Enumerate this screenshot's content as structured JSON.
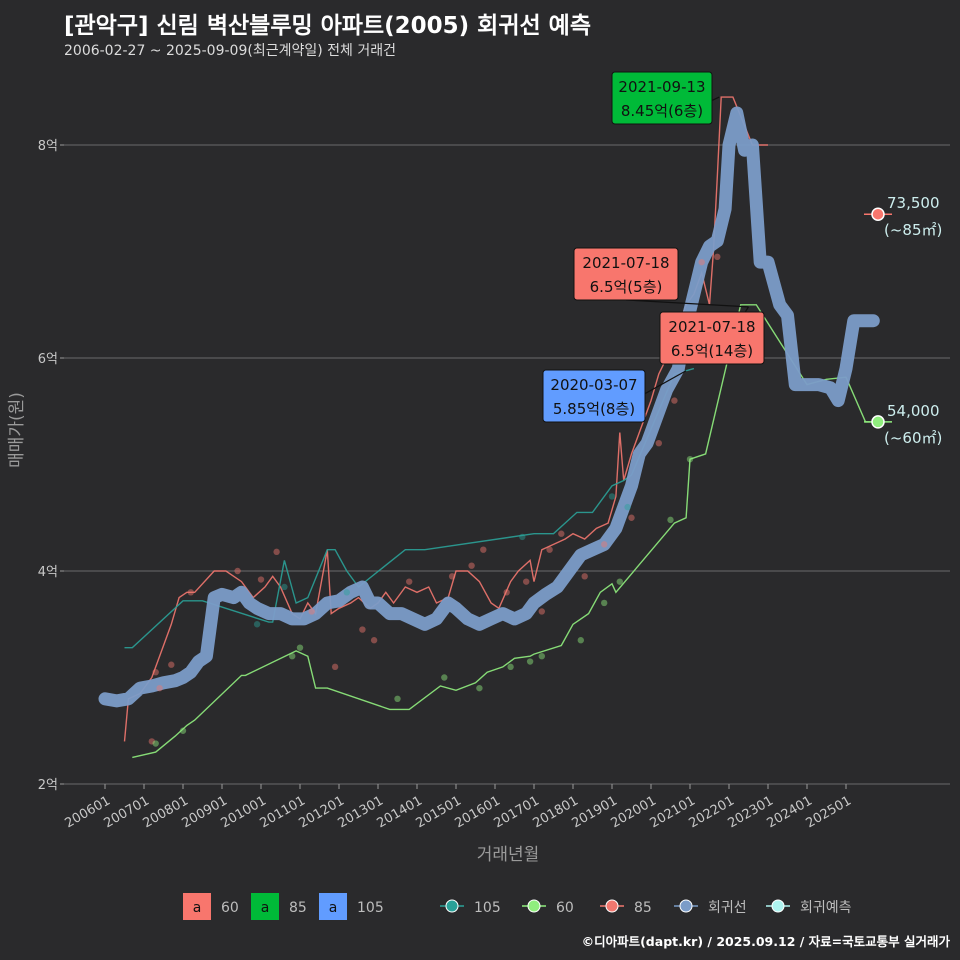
{
  "title": "[관악구] 신림 벽산블루밍 아파트(2005) 회귀선 예측",
  "subtitle": "2006-02-27 ~ 2025-09-09(최근계약일) 전체 거래건",
  "credit": "©디아파트(dapt.kr) / 2025.09.12 / 자료=국토교통부 실거래가",
  "chart_data": {
    "type": "line",
    "xlabel": "거래년월",
    "ylabel": "매매가(원)",
    "x_ticks": [
      "200601",
      "200701",
      "200801",
      "200901",
      "201001",
      "201101",
      "201201",
      "201301",
      "201401",
      "201501",
      "201601",
      "201701",
      "201801",
      "201901",
      "202001",
      "202101",
      "202201",
      "202301",
      "202401",
      "202501"
    ],
    "y_ticks": [
      "2억",
      "4억",
      "6억",
      "8억"
    ],
    "ylim": [
      1.95,
      8.6
    ],
    "grid": true,
    "colors": {
      "c60": "#f2776f",
      "c85": "#90ee7e",
      "c105": "#2aa198",
      "reg": "#7b9cc8",
      "pred": "#aef4f0",
      "ann60": "#f8766d",
      "ann85": "#00ba38",
      "ann105": "#619cff"
    },
    "legend_fill": [
      {
        "key": "a",
        "label": "60",
        "color": "#f8766d"
      },
      {
        "key": "a",
        "label": "85",
        "color": "#00ba38"
      },
      {
        "key": "a",
        "label": "105",
        "color": "#619cff"
      }
    ],
    "legend_lines": [
      {
        "label": "105",
        "color": "#2aa198"
      },
      {
        "label": "60",
        "color": "#90ee7e"
      },
      {
        "label": "85",
        "color": "#f2776f"
      },
      {
        "label": "회귀선",
        "color": "#7b9cc8"
      },
      {
        "label": "회귀예측",
        "color": "#aef4f0"
      }
    ],
    "series": [
      {
        "name": "85",
        "color": "#f2776f",
        "points": [
          [
            2006.5,
            2.4
          ],
          [
            2006.6,
            2.8
          ],
          [
            2006.9,
            2.85
          ],
          [
            2007.2,
            3.0
          ],
          [
            2007.4,
            3.2
          ],
          [
            2007.7,
            3.5
          ],
          [
            2007.9,
            3.75
          ],
          [
            2008.1,
            3.8
          ],
          [
            2008.3,
            3.8
          ],
          [
            2008.8,
            4.0
          ],
          [
            2009.1,
            4.0
          ],
          [
            2009.3,
            3.95
          ],
          [
            2009.5,
            3.9
          ],
          [
            2009.8,
            3.75
          ],
          [
            2010.1,
            3.85
          ],
          [
            2010.3,
            3.95
          ],
          [
            2010.5,
            3.85
          ],
          [
            2010.8,
            3.6
          ],
          [
            2011.0,
            3.55
          ],
          [
            2011.2,
            3.7
          ],
          [
            2011.4,
            3.6
          ],
          [
            2011.5,
            3.8
          ],
          [
            2011.7,
            4.2
          ],
          [
            2011.8,
            3.6
          ],
          [
            2012.0,
            3.65
          ],
          [
            2012.3,
            3.7
          ],
          [
            2012.5,
            3.75
          ],
          [
            2012.8,
            3.65
          ],
          [
            2013.0,
            3.7
          ],
          [
            2013.2,
            3.8
          ],
          [
            2013.4,
            3.7
          ],
          [
            2013.7,
            3.85
          ],
          [
            2014.0,
            3.8
          ],
          [
            2014.3,
            3.85
          ],
          [
            2014.5,
            3.7
          ],
          [
            2014.8,
            3.75
          ],
          [
            2015.0,
            4.0
          ],
          [
            2015.3,
            4.0
          ],
          [
            2015.6,
            3.9
          ],
          [
            2015.9,
            3.7
          ],
          [
            2016.1,
            3.65
          ],
          [
            2016.4,
            3.9
          ],
          [
            2016.6,
            4.0
          ],
          [
            2016.9,
            4.1
          ],
          [
            2017.0,
            3.9
          ],
          [
            2017.2,
            4.2
          ],
          [
            2017.5,
            4.25
          ],
          [
            2017.8,
            4.3
          ],
          [
            2018.0,
            4.35
          ],
          [
            2018.3,
            4.3
          ],
          [
            2018.6,
            4.4
          ],
          [
            2018.9,
            4.45
          ],
          [
            2019.1,
            4.7
          ],
          [
            2019.2,
            5.3
          ],
          [
            2019.3,
            4.85
          ],
          [
            2019.5,
            5.1
          ],
          [
            2019.8,
            5.4
          ],
          [
            2020.0,
            5.6
          ],
          [
            2020.2,
            5.85
          ],
          [
            2020.4,
            6.0
          ],
          [
            2020.7,
            6.3
          ],
          [
            2020.9,
            6.5
          ],
          [
            2021.1,
            6.6
          ],
          [
            2021.3,
            6.8
          ],
          [
            2021.5,
            6.5
          ],
          [
            2021.6,
            7.0
          ],
          [
            2021.7,
            7.7
          ],
          [
            2021.8,
            8.45
          ],
          [
            2022.1,
            8.45
          ],
          [
            2022.6,
            8.0
          ],
          [
            2023.0,
            8.0
          ]
        ]
      },
      {
        "name": "60",
        "color": "#90ee7e",
        "points": [
          [
            2006.7,
            2.25
          ],
          [
            2007.3,
            2.3
          ],
          [
            2007.8,
            2.45
          ],
          [
            2008.1,
            2.55
          ],
          [
            2008.3,
            2.6
          ],
          [
            2009.5,
            3.02
          ],
          [
            2009.6,
            3.02
          ],
          [
            2010.9,
            3.25
          ],
          [
            2011.2,
            3.2
          ],
          [
            2011.4,
            2.9
          ],
          [
            2011.7,
            2.9
          ],
          [
            2013.3,
            2.7
          ],
          [
            2013.8,
            2.7
          ],
          [
            2014.6,
            2.92
          ],
          [
            2015.0,
            2.88
          ],
          [
            2015.5,
            2.95
          ],
          [
            2015.8,
            3.05
          ],
          [
            2016.2,
            3.1
          ],
          [
            2016.5,
            3.18
          ],
          [
            2016.9,
            3.2
          ],
          [
            2017.0,
            3.22
          ],
          [
            2017.7,
            3.3
          ],
          [
            2018.0,
            3.5
          ],
          [
            2018.4,
            3.6
          ],
          [
            2018.7,
            3.8
          ],
          [
            2019.0,
            3.88
          ],
          [
            2019.1,
            3.8
          ],
          [
            2020.6,
            4.45
          ],
          [
            2020.9,
            4.5
          ],
          [
            2021.0,
            5.05
          ],
          [
            2021.4,
            5.1
          ],
          [
            2022.3,
            6.5
          ],
          [
            2022.7,
            6.5
          ],
          [
            2024.0,
            5.75
          ],
          [
            2024.5,
            5.8
          ],
          [
            2025.0,
            5.82
          ],
          [
            2025.5,
            5.4
          ],
          [
            2025.7,
            5.4
          ]
        ]
      },
      {
        "name": "105",
        "color": "#2aa198",
        "points": [
          [
            2006.5,
            3.28
          ],
          [
            2006.7,
            3.28
          ],
          [
            2008.0,
            3.72
          ],
          [
            2008.5,
            3.72
          ],
          [
            2010.2,
            3.52
          ],
          [
            2010.3,
            3.52
          ],
          [
            2010.6,
            4.1
          ],
          [
            2010.9,
            3.7
          ],
          [
            2011.2,
            3.75
          ],
          [
            2011.7,
            4.2
          ],
          [
            2011.9,
            4.2
          ],
          [
            2012.2,
            4.0
          ],
          [
            2012.5,
            3.85
          ],
          [
            2013.7,
            4.2
          ],
          [
            2014.2,
            4.2
          ],
          [
            2017.0,
            4.35
          ],
          [
            2017.5,
            4.35
          ],
          [
            2018.1,
            4.55
          ],
          [
            2018.5,
            4.55
          ],
          [
            2019.0,
            4.8
          ],
          [
            2019.3,
            4.85
          ],
          [
            2019.5,
            4.9
          ],
          [
            2020.6,
            5.85
          ],
          [
            2021.1,
            5.9
          ]
        ]
      },
      {
        "name": "회귀선",
        "color": "#7b9cc8",
        "points": [
          [
            2006.0,
            2.8
          ],
          [
            2006.3,
            2.78
          ],
          [
            2006.6,
            2.8
          ],
          [
            2006.9,
            2.9
          ],
          [
            2007.2,
            2.92
          ],
          [
            2007.5,
            2.95
          ],
          [
            2007.8,
            2.97
          ],
          [
            2008.0,
            3.0
          ],
          [
            2008.2,
            3.05
          ],
          [
            2008.4,
            3.15
          ],
          [
            2008.6,
            3.2
          ],
          [
            2008.8,
            3.75
          ],
          [
            2009.0,
            3.78
          ],
          [
            2009.3,
            3.75
          ],
          [
            2009.5,
            3.8
          ],
          [
            2009.7,
            3.7
          ],
          [
            2009.9,
            3.65
          ],
          [
            2010.2,
            3.6
          ],
          [
            2010.5,
            3.6
          ],
          [
            2010.8,
            3.55
          ],
          [
            2011.1,
            3.55
          ],
          [
            2011.4,
            3.6
          ],
          [
            2011.7,
            3.7
          ],
          [
            2012.0,
            3.72
          ],
          [
            2012.3,
            3.8
          ],
          [
            2012.6,
            3.85
          ],
          [
            2012.8,
            3.7
          ],
          [
            2013.0,
            3.7
          ],
          [
            2013.3,
            3.6
          ],
          [
            2013.6,
            3.6
          ],
          [
            2013.9,
            3.55
          ],
          [
            2014.2,
            3.5
          ],
          [
            2014.5,
            3.55
          ],
          [
            2014.8,
            3.7
          ],
          [
            2015.0,
            3.65
          ],
          [
            2015.3,
            3.55
          ],
          [
            2015.6,
            3.5
          ],
          [
            2015.9,
            3.55
          ],
          [
            2016.2,
            3.6
          ],
          [
            2016.5,
            3.55
          ],
          [
            2016.8,
            3.6
          ],
          [
            2017.0,
            3.7
          ],
          [
            2017.3,
            3.78
          ],
          [
            2017.6,
            3.85
          ],
          [
            2017.9,
            4.0
          ],
          [
            2018.2,
            4.15
          ],
          [
            2018.5,
            4.2
          ],
          [
            2018.8,
            4.25
          ],
          [
            2019.1,
            4.4
          ],
          [
            2019.3,
            4.6
          ],
          [
            2019.5,
            4.8
          ],
          [
            2019.7,
            5.1
          ],
          [
            2019.9,
            5.2
          ],
          [
            2020.1,
            5.4
          ],
          [
            2020.4,
            5.7
          ],
          [
            2020.7,
            5.9
          ],
          [
            2020.9,
            6.3
          ],
          [
            2021.1,
            6.6
          ],
          [
            2021.3,
            6.9
          ],
          [
            2021.5,
            7.05
          ],
          [
            2021.7,
            7.1
          ],
          [
            2021.9,
            7.4
          ],
          [
            2022.0,
            8.0
          ],
          [
            2022.2,
            8.3
          ],
          [
            2022.4,
            7.95
          ],
          [
            2022.6,
            8.0
          ],
          [
            2022.8,
            6.9
          ],
          [
            2023.0,
            6.9
          ],
          [
            2023.3,
            6.5
          ],
          [
            2023.5,
            6.4
          ],
          [
            2023.7,
            5.75
          ],
          [
            2024.0,
            5.75
          ],
          [
            2024.3,
            5.75
          ],
          [
            2024.6,
            5.72
          ],
          [
            2024.8,
            5.6
          ],
          [
            2025.0,
            5.9
          ],
          [
            2025.2,
            6.35
          ],
          [
            2025.5,
            6.35
          ],
          [
            2025.7,
            6.35
          ]
        ]
      }
    ],
    "scatter_points": [
      [
        2007.3,
        3.05,
        "c60"
      ],
      [
        2007.7,
        3.12,
        "c60"
      ],
      [
        2007.4,
        2.9,
        "c60"
      ],
      [
        2007.2,
        2.4,
        "c60"
      ],
      [
        2008.2,
        3.8,
        "c60"
      ],
      [
        2009.4,
        4.0,
        "c60"
      ],
      [
        2010.0,
        3.92,
        "c60"
      ],
      [
        2010.4,
        4.18,
        "c60"
      ],
      [
        2011.3,
        3.62,
        "c60"
      ],
      [
        2011.9,
        3.1,
        "c60"
      ],
      [
        2012.6,
        3.45,
        "c60"
      ],
      [
        2012.9,
        3.35,
        "c60"
      ],
      [
        2013.8,
        3.9,
        "c60"
      ],
      [
        2014.9,
        3.95,
        "c60"
      ],
      [
        2015.4,
        4.05,
        "c60"
      ],
      [
        2015.7,
        4.2,
        "c60"
      ],
      [
        2016.3,
        3.8,
        "c60"
      ],
      [
        2016.8,
        3.9,
        "c60"
      ],
      [
        2017.2,
        3.62,
        "c60"
      ],
      [
        2017.4,
        4.2,
        "c60"
      ],
      [
        2017.7,
        4.35,
        "c60"
      ],
      [
        2018.3,
        3.95,
        "c60"
      ],
      [
        2018.8,
        4.25,
        "c60"
      ],
      [
        2019.5,
        4.5,
        "c60"
      ],
      [
        2020.2,
        5.2,
        "c60"
      ],
      [
        2020.6,
        5.6,
        "c60"
      ],
      [
        2021.3,
        6.9,
        "c60"
      ],
      [
        2021.7,
        6.95,
        "c60"
      ],
      [
        2007.3,
        2.38,
        "c85"
      ],
      [
        2008.0,
        2.5,
        "c85"
      ],
      [
        2010.8,
        3.2,
        "c85"
      ],
      [
        2011.0,
        3.28,
        "c85"
      ],
      [
        2013.5,
        2.8,
        "c85"
      ],
      [
        2014.7,
        3.0,
        "c85"
      ],
      [
        2015.6,
        2.9,
        "c85"
      ],
      [
        2016.4,
        3.1,
        "c85"
      ],
      [
        2016.9,
        3.15,
        "c85"
      ],
      [
        2017.2,
        3.2,
        "c85"
      ],
      [
        2018.2,
        3.35,
        "c85"
      ],
      [
        2018.8,
        3.7,
        "c85"
      ],
      [
        2019.2,
        3.9,
        "c85"
      ],
      [
        2020.5,
        4.48,
        "c85"
      ],
      [
        2021.0,
        5.05,
        "c85"
      ],
      [
        2009.9,
        3.5,
        "c105"
      ],
      [
        2010.6,
        3.85,
        "c105"
      ],
      [
        2012.2,
        3.8,
        "c105"
      ],
      [
        2016.7,
        4.32,
        "c105"
      ],
      [
        2019.0,
        4.7,
        "c105"
      ],
      [
        2019.4,
        4.6,
        "c105"
      ]
    ],
    "annotations": [
      {
        "date": "2021-09-13",
        "price": "8.45억(6층)",
        "x": 2021.8,
        "y": 8.45,
        "color": "#00ba38"
      },
      {
        "date": "2021-07-18",
        "price": "6.5억(5층)",
        "x": 2021.55,
        "y": 6.5,
        "color": "#f8766d"
      },
      {
        "date": "2021-07-18",
        "price": "6.5억(14층)",
        "x": 2021.55,
        "y": 6.5,
        "color": "#f8766d"
      },
      {
        "date": "2020-03-07",
        "price": "5.85억(8층)",
        "x": 2020.2,
        "y": 5.85,
        "color": "#619cff"
      }
    ],
    "predictions": [
      {
        "value": "73,500",
        "area": "(~85㎡)",
        "y": 7.35,
        "color": "#f8766d"
      },
      {
        "value": "54,000",
        "area": "(~60㎡)",
        "y": 5.4,
        "color": "#90ee7e"
      }
    ]
  }
}
